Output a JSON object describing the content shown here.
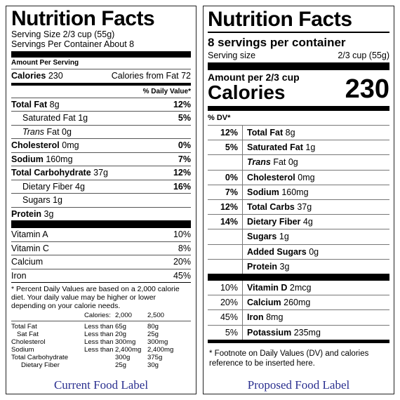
{
  "current": {
    "title": "Nutrition Facts",
    "serving_size": "Serving Size 2/3 cup (55g)",
    "servings_per_container": "Servings Per Container About 8",
    "amount_per_serving": "Amount Per Serving",
    "calories_label": "Calories",
    "calories_value": "230",
    "calories_from_fat": "Calories from Fat 72",
    "dv_header": "% Daily Value*",
    "rows": [
      {
        "label": "Total Fat",
        "amount": "8g",
        "pct": "12%"
      },
      {
        "label": "Saturated Fat",
        "amount": "1g",
        "pct": "5%"
      },
      {
        "label": "Trans",
        "amount": "Fat 0g",
        "pct": ""
      },
      {
        "label": "Cholesterol",
        "amount": "0mg",
        "pct": "0%"
      },
      {
        "label": "Sodium",
        "amount": "160mg",
        "pct": "7%"
      },
      {
        "label": "Total Carbohydrate",
        "amount": "37g",
        "pct": "12%"
      },
      {
        "label": "Dietary Fiber",
        "amount": "4g",
        "pct": "16%"
      },
      {
        "label": "Sugars",
        "amount": "1g",
        "pct": ""
      },
      {
        "label": "Protein",
        "amount": "3g",
        "pct": ""
      }
    ],
    "vitamins": [
      {
        "label": "Vitamin A",
        "pct": "10%"
      },
      {
        "label": "Vitamin C",
        "pct": "8%"
      },
      {
        "label": "Calcium",
        "pct": "20%"
      },
      {
        "label": "Iron",
        "pct": "45%"
      }
    ],
    "footnote": "* Percent Daily Values are based on a 2,000 calorie diet. Your daily value may be higher or lower depending on your calorie needs.",
    "footnote_table": {
      "header": [
        "",
        "Calories:",
        "2,000",
        "2,500"
      ],
      "rows": [
        [
          "Total Fat",
          "Less than",
          "65g",
          "80g"
        ],
        [
          "Sat Fat",
          "Less than",
          "20g",
          "25g"
        ],
        [
          "Cholesterol",
          "Less than",
          "300mg",
          "300mg"
        ],
        [
          "Sodium",
          "Less than",
          "2,400mg",
          "2,400mg"
        ],
        [
          "Total Carbohydrate",
          "",
          "300g",
          "375g"
        ],
        [
          "Dietary Fiber",
          "",
          "25g",
          "30g"
        ]
      ]
    },
    "caption": "Current Food Label"
  },
  "proposed": {
    "title": "Nutrition Facts",
    "servings": "8 servings per container",
    "serving_size_label": "Serving size",
    "serving_size_value": "2/3 cup (55g)",
    "amount_per": "Amount per 2/3 cup",
    "calories_label": "Calories",
    "calories_value": "230",
    "dv_header": "% DV*",
    "rows": [
      {
        "pct": "12%",
        "label": "Total Fat",
        "amount": "8g"
      },
      {
        "pct": "5%",
        "label": "Saturated Fat",
        "amount": "1g"
      },
      {
        "pct": "",
        "label": "Trans",
        "amount": "Fat 0g"
      },
      {
        "pct": "0%",
        "label": "Cholesterol",
        "amount": "0mg"
      },
      {
        "pct": "7%",
        "label": "Sodium",
        "amount": "160mg"
      },
      {
        "pct": "12%",
        "label": "Total Carbs",
        "amount": "37g"
      },
      {
        "pct": "14%",
        "label": "Dietary Fiber",
        "amount": "4g"
      },
      {
        "pct": "",
        "label": "Sugars",
        "amount": "1g"
      },
      {
        "pct": "",
        "label": "Added Sugars",
        "amount": "0g"
      },
      {
        "pct": "",
        "label": "Protein",
        "amount": "3g"
      }
    ],
    "minerals": [
      {
        "pct": "10%",
        "label": "Vitamin D",
        "amount": "2mcg"
      },
      {
        "pct": "20%",
        "label": "Calcium",
        "amount": "260mg"
      },
      {
        "pct": "45%",
        "label": "Iron",
        "amount": "8mg"
      },
      {
        "pct": "5%",
        "label": "Potassium",
        "amount": "235mg"
      }
    ],
    "footnote": "* Footnote on Daily Values (DV) and calories reference to be inserted here.",
    "caption": "Proposed Food Label"
  }
}
